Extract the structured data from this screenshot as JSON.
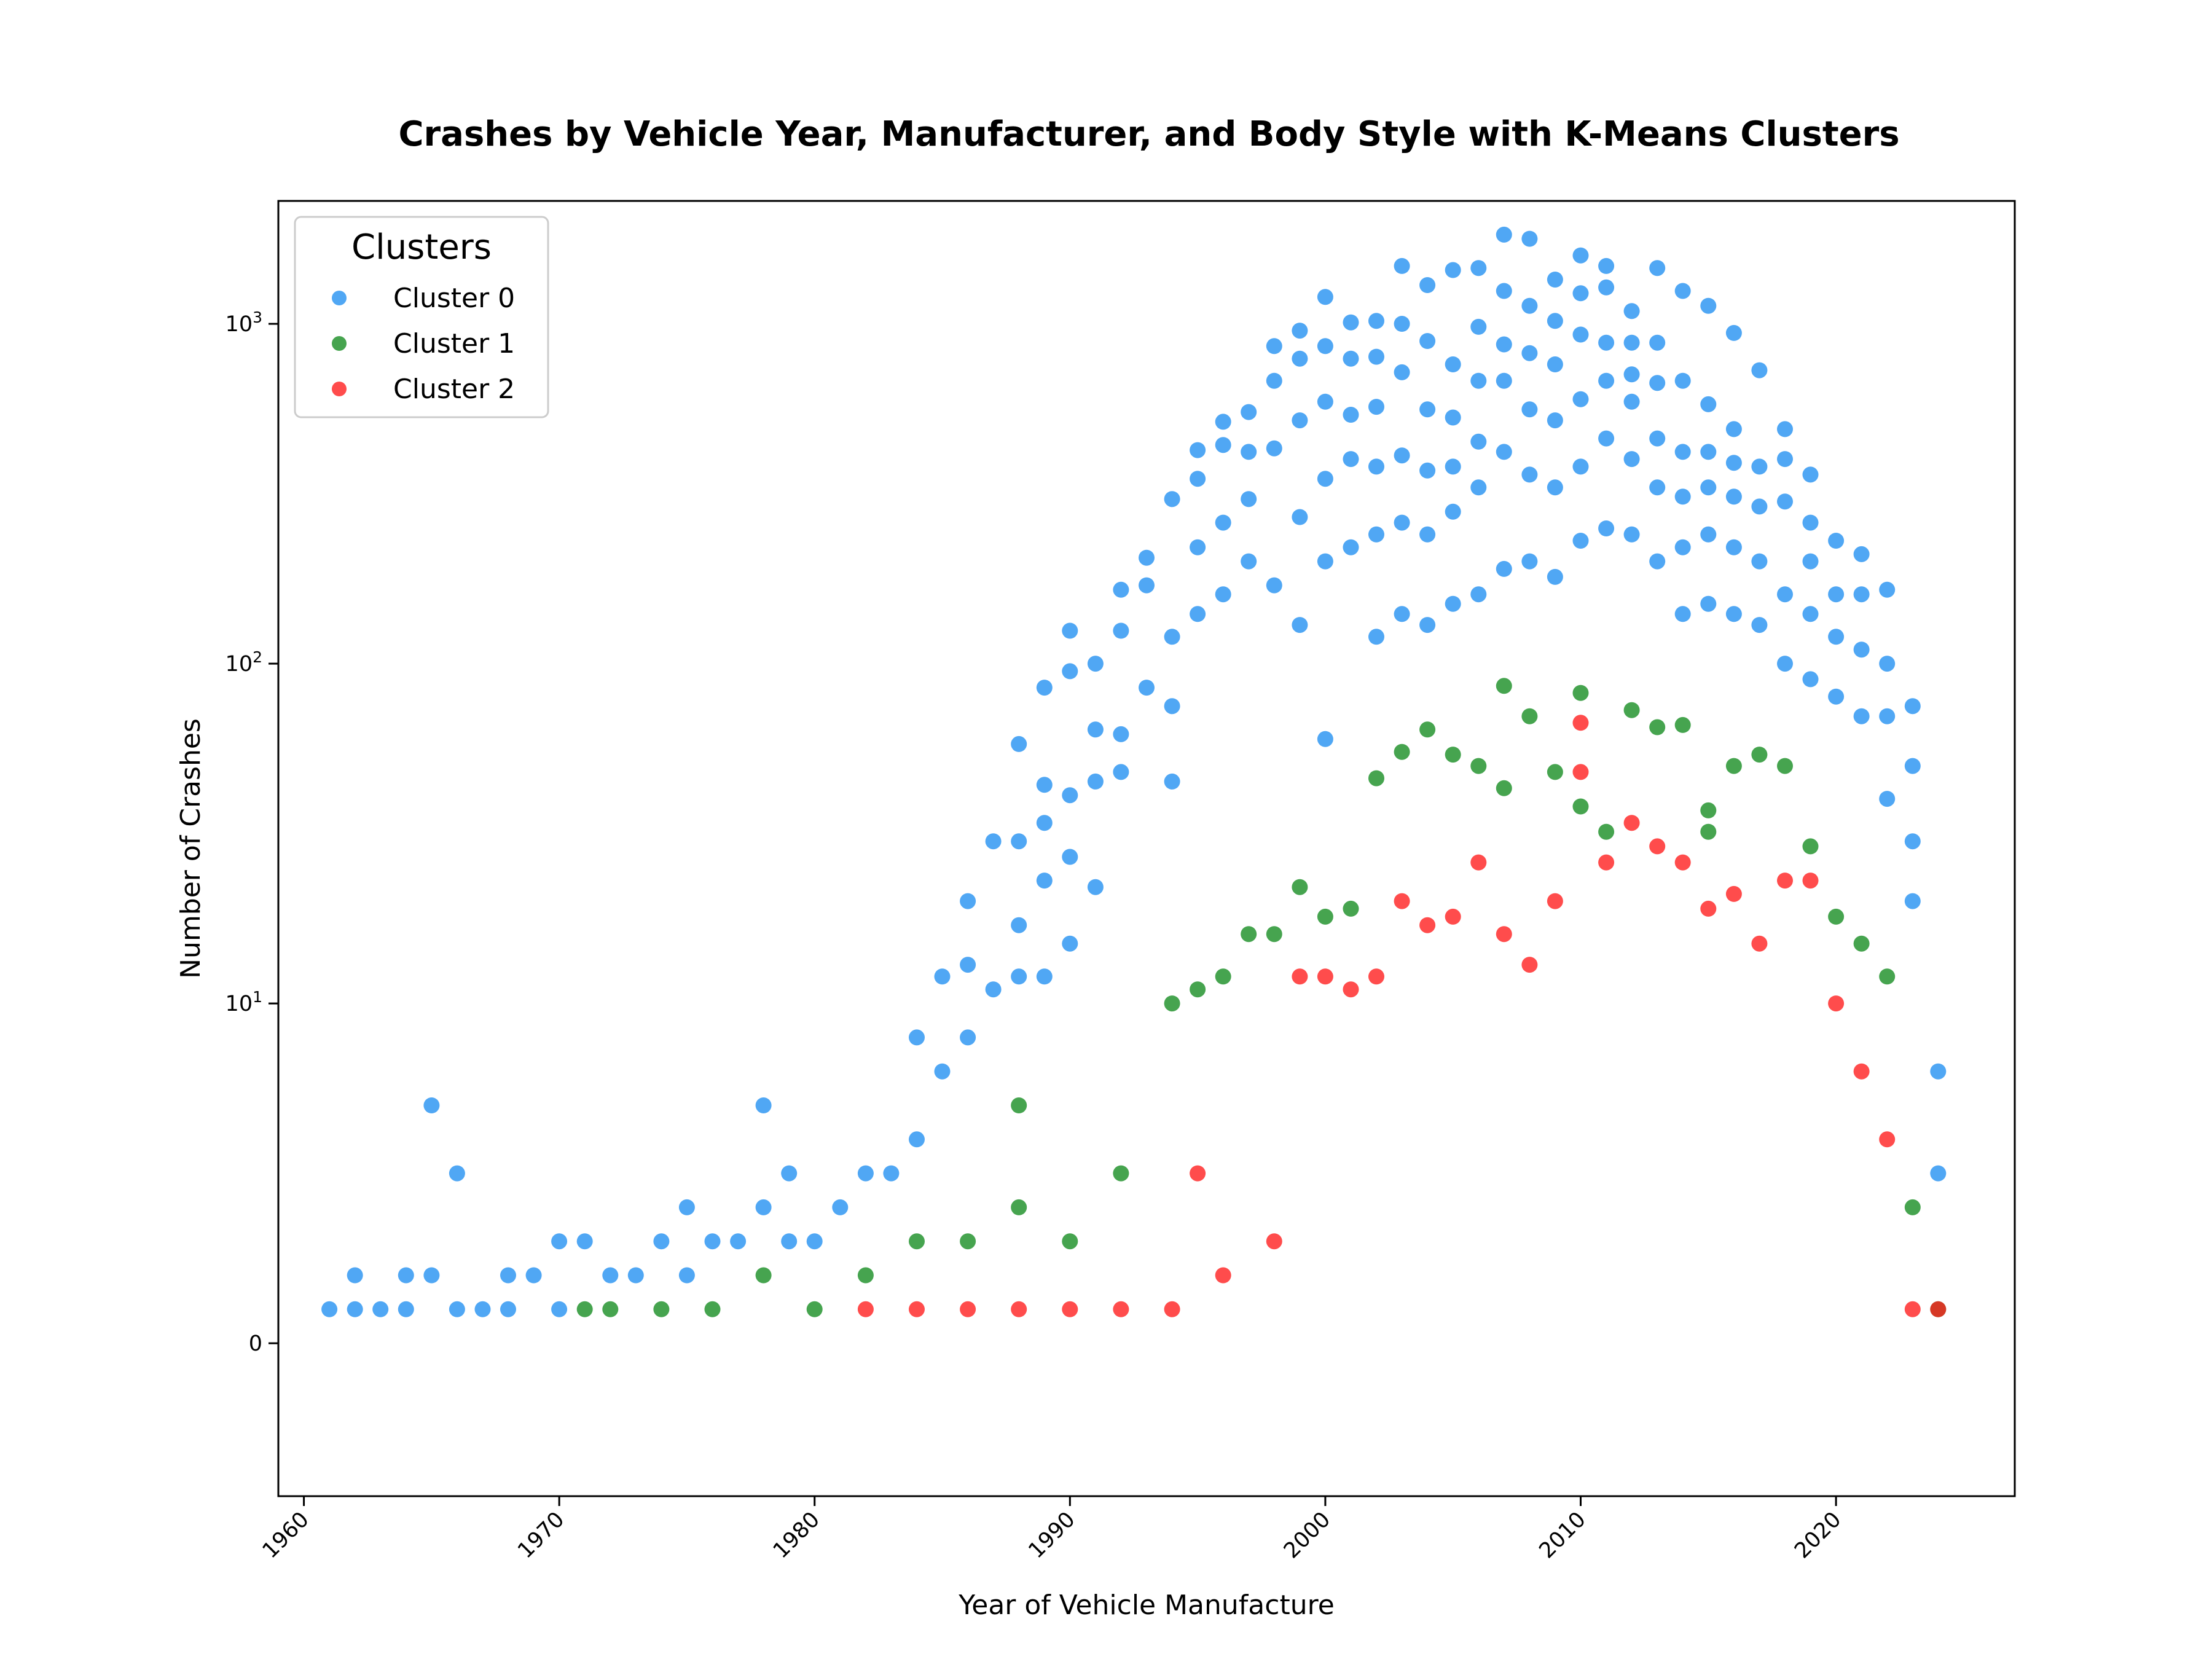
{
  "chart_data": {
    "type": "scatter",
    "title": "Crashes by Vehicle Year, Manufacturer, and Body Style with K-Means Clusters",
    "xlabel": "Year of Vehicle Manufacture",
    "ylabel": "Number of Crashes",
    "xlim": [
      1959,
      2027
    ],
    "ylim": [
      0,
      2300
    ],
    "yscale": "symlog",
    "grid": false,
    "legend": {
      "title": "Clusters",
      "placement": "top-left"
    },
    "x_ticks": [
      {
        "value": 1960,
        "label": "1960"
      },
      {
        "value": 1970,
        "label": "1970"
      },
      {
        "value": 1980,
        "label": "1980"
      },
      {
        "value": 1990,
        "label": "1990"
      },
      {
        "value": 2000,
        "label": "2000"
      },
      {
        "value": 2010,
        "label": "2010"
      },
      {
        "value": 2020,
        "label": "2020"
      }
    ],
    "y_ticks": [
      {
        "value": 0,
        "base": "0",
        "exp": ""
      },
      {
        "value": 10,
        "base": "10",
        "exp": "1"
      },
      {
        "value": 100,
        "base": "10",
        "exp": "2"
      },
      {
        "value": 1000,
        "base": "10",
        "exp": "3"
      }
    ],
    "series": [
      {
        "name": "Cluster 0",
        "color": "#1f8ef1",
        "x": [
          1961,
          1962,
          1962,
          1963,
          1964,
          1964,
          1965,
          1965,
          1966,
          1966,
          1967,
          1968,
          1968,
          1969,
          1970,
          1970,
          1971,
          1972,
          1973,
          1974,
          1975,
          1975,
          1976,
          1977,
          1978,
          1978,
          1979,
          1979,
          1980,
          1981,
          1982,
          1983,
          1984,
          1984,
          1985,
          1985,
          1986,
          1986,
          1986,
          1987,
          1987,
          1988,
          1988,
          1988,
          1988,
          1989,
          1989,
          1989,
          1989,
          1989,
          1990,
          1990,
          1990,
          1990,
          1990,
          1991,
          1991,
          1991,
          1991,
          1992,
          1992,
          1992,
          1992,
          1993,
          1993,
          1993,
          1994,
          1994,
          1994,
          1994,
          1995,
          1995,
          1995,
          1995,
          1996,
          1996,
          1996,
          1996,
          1997,
          1997,
          1997,
          1997,
          1998,
          1998,
          1998,
          1998,
          1999,
          1999,
          1999,
          1999,
          1999,
          2000,
          2000,
          2000,
          2000,
          2000,
          2000,
          2001,
          2001,
          2001,
          2001,
          2001,
          2002,
          2002,
          2002,
          2002,
          2002,
          2002,
          2003,
          2003,
          2003,
          2003,
          2003,
          2003,
          2004,
          2004,
          2004,
          2004,
          2004,
          2004,
          2005,
          2005,
          2005,
          2005,
          2005,
          2005,
          2006,
          2006,
          2006,
          2006,
          2006,
          2006,
          2007,
          2007,
          2007,
          2007,
          2007,
          2007,
          2008,
          2008,
          2008,
          2008,
          2008,
          2008,
          2009,
          2009,
          2009,
          2009,
          2009,
          2009,
          2010,
          2010,
          2010,
          2010,
          2010,
          2010,
          2011,
          2011,
          2011,
          2011,
          2011,
          2011,
          2012,
          2012,
          2012,
          2012,
          2012,
          2012,
          2013,
          2013,
          2013,
          2013,
          2013,
          2013,
          2014,
          2014,
          2014,
          2014,
          2014,
          2014,
          2015,
          2015,
          2015,
          2015,
          2015,
          2015,
          2016,
          2016,
          2016,
          2016,
          2016,
          2016,
          2017,
          2017,
          2017,
          2017,
          2017,
          2018,
          2018,
          2018,
          2018,
          2018,
          2019,
          2019,
          2019,
          2019,
          2019,
          2020,
          2020,
          2020,
          2020,
          2021,
          2021,
          2021,
          2021,
          2022,
          2022,
          2022,
          2022,
          2023,
          2023,
          2023,
          2023,
          2024,
          2024
        ],
        "y": [
          1,
          2,
          1,
          1,
          2,
          1,
          7,
          2,
          5,
          1,
          1,
          2,
          1,
          2,
          3,
          1,
          3,
          2,
          2,
          3,
          4,
          2,
          3,
          3,
          7,
          4,
          5,
          3,
          3,
          4,
          5,
          5,
          9,
          6,
          12,
          8,
          20,
          13,
          9,
          30,
          11,
          58,
          30,
          17,
          12,
          85,
          44,
          34,
          23,
          12,
          125,
          95,
          41,
          27,
          15,
          100,
          64,
          45,
          22,
          165,
          125,
          62,
          48,
          205,
          170,
          85,
          305,
          120,
          75,
          45,
          425,
          350,
          220,
          140,
          515,
          440,
          260,
          160,
          550,
          420,
          305,
          200,
          860,
          680,
          430,
          170,
          955,
          790,
          520,
          270,
          130,
          1200,
          860,
          590,
          350,
          200,
          60,
          1010,
          790,
          540,
          400,
          220,
          1020,
          800,
          570,
          380,
          240,
          120,
          1480,
          1000,
          720,
          410,
          260,
          140,
          1300,
          890,
          560,
          370,
          240,
          130,
          1440,
          760,
          530,
          380,
          280,
          150,
          1460,
          980,
          680,
          450,
          330,
          160,
          1830,
          1250,
          870,
          680,
          420,
          190,
          1780,
          1130,
          820,
          560,
          360,
          200,
          1350,
          1020,
          760,
          520,
          330,
          180,
          1590,
          1230,
          930,
          600,
          380,
          230,
          1480,
          1280,
          880,
          680,
          460,
          250,
          1090,
          880,
          710,
          590,
          400,
          240,
          1460,
          880,
          670,
          460,
          330,
          200,
          1250,
          680,
          420,
          310,
          220,
          140,
          1130,
          580,
          420,
          330,
          240,
          150,
          940,
          490,
          390,
          310,
          220,
          140,
          730,
          380,
          290,
          200,
          130,
          490,
          400,
          300,
          160,
          100,
          360,
          260,
          200,
          140,
          90,
          230,
          160,
          120,
          80,
          210,
          160,
          110,
          70,
          165,
          100,
          70,
          40,
          75,
          50,
          30,
          20,
          8,
          5
        ]
      },
      {
        "name": "Cluster 1",
        "color": "#128a1d",
        "x": [
          1971,
          1972,
          1974,
          1976,
          1978,
          1980,
          1982,
          1984,
          1986,
          1988,
          1988,
          1990,
          1992,
          1994,
          1995,
          1996,
          1997,
          1998,
          1999,
          2000,
          2001,
          2002,
          2003,
          2004,
          2005,
          2006,
          2007,
          2007,
          2008,
          2009,
          2010,
          2010,
          2011,
          2012,
          2013,
          2014,
          2015,
          2015,
          2016,
          2017,
          2018,
          2019,
          2020,
          2021,
          2022,
          2023,
          2024
        ],
        "y": [
          1,
          1,
          1,
          1,
          2,
          1,
          2,
          3,
          3,
          4,
          7,
          3,
          5,
          10,
          11,
          12,
          16,
          16,
          22,
          18,
          19,
          46,
          55,
          64,
          54,
          50,
          86,
          43,
          70,
          48,
          82,
          38,
          32,
          73,
          65,
          66,
          37,
          32,
          50,
          54,
          50,
          29,
          18,
          15,
          12,
          4,
          1
        ]
      },
      {
        "name": "Cluster 2",
        "color": "#ff1a1a",
        "x": [
          1982,
          1984,
          1986,
          1988,
          1990,
          1992,
          1994,
          1995,
          1996,
          1998,
          1999,
          2000,
          2001,
          2002,
          2003,
          2004,
          2005,
          2006,
          2007,
          2008,
          2009,
          2010,
          2010,
          2011,
          2012,
          2013,
          2014,
          2015,
          2016,
          2017,
          2018,
          2019,
          2020,
          2021,
          2022,
          2023,
          2024
        ],
        "y": [
          1,
          1,
          1,
          1,
          1,
          1,
          1,
          5,
          2,
          3,
          12,
          12,
          11,
          12,
          20,
          17,
          18,
          26,
          16,
          13,
          20,
          67,
          48,
          26,
          34,
          29,
          26,
          19,
          21,
          15,
          23,
          23,
          10,
          8,
          6,
          1,
          1
        ]
      }
    ]
  }
}
